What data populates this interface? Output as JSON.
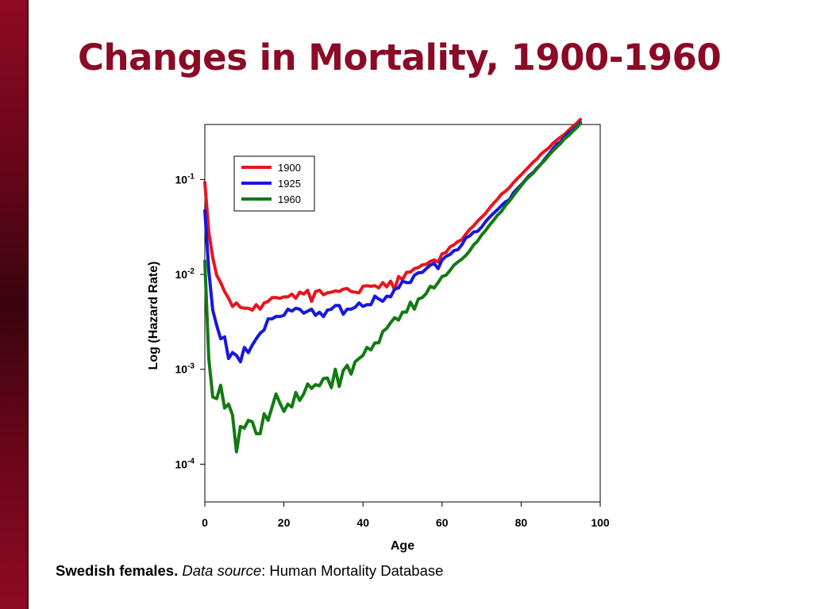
{
  "title": "Changes in Mortality, 1900-1960",
  "caption": {
    "bold": "Swedish females.",
    "italic": "Data source",
    "rest": ": Human Mortality Database"
  },
  "colors": {
    "side_bar": "#7a0820",
    "title": "#8b0a26"
  },
  "chart_data": {
    "type": "line",
    "xlabel": "Age",
    "ylabel": "Log (Hazard Rate)",
    "xlim": [
      0,
      100
    ],
    "ylim": [
      4e-05,
      0.38
    ],
    "y_scale": "log",
    "x_ticks": [
      0,
      20,
      40,
      60,
      80,
      100
    ],
    "y_ticks": [
      {
        "value": 0.1,
        "base": "10",
        "exp": "-1"
      },
      {
        "value": 0.01,
        "base": "10",
        "exp": "-2"
      },
      {
        "value": 0.001,
        "base": "10",
        "exp": "-3"
      },
      {
        "value": 0.0001,
        "base": "10",
        "exp": "-4"
      }
    ],
    "grid": false,
    "legend_position": "top-left",
    "series": [
      {
        "name": "1900",
        "color": "#e8141c",
        "x": [
          0,
          1,
          2,
          3,
          4,
          5,
          6,
          7,
          8,
          9,
          10,
          11,
          12,
          13,
          14,
          15,
          16,
          17,
          18,
          19,
          20,
          21,
          22,
          23,
          24,
          25,
          26,
          27,
          28,
          29,
          30,
          31,
          32,
          33,
          34,
          35,
          36,
          37,
          38,
          39,
          40,
          41,
          42,
          43,
          44,
          45,
          46,
          47,
          48,
          49,
          50,
          51,
          52,
          53,
          54,
          55,
          56,
          57,
          58,
          59,
          60,
          61,
          62,
          63,
          64,
          65,
          66,
          67,
          68,
          69,
          70,
          71,
          72,
          73,
          74,
          75,
          76,
          77,
          78,
          79,
          80,
          81,
          82,
          83,
          84,
          85,
          86,
          87,
          88,
          89,
          90,
          91,
          92,
          93,
          94,
          95
        ],
        "y": [
          0.093,
          0.028,
          0.015,
          0.0098,
          0.0082,
          0.0066,
          0.0056,
          0.0046,
          0.005,
          0.0045,
          0.0044,
          0.0044,
          0.0042,
          0.0048,
          0.0043,
          0.005,
          0.0052,
          0.0057,
          0.0057,
          0.0056,
          0.0058,
          0.0058,
          0.0062,
          0.0056,
          0.0065,
          0.0062,
          0.0068,
          0.0052,
          0.0066,
          0.0068,
          0.0061,
          0.0064,
          0.0065,
          0.0067,
          0.0066,
          0.007,
          0.0071,
          0.0066,
          0.0065,
          0.0064,
          0.0075,
          0.0076,
          0.0075,
          0.0076,
          0.0072,
          0.0082,
          0.0074,
          0.0085,
          0.0069,
          0.0095,
          0.0088,
          0.0105,
          0.0106,
          0.0115,
          0.0118,
          0.0126,
          0.0128,
          0.0137,
          0.0142,
          0.0135,
          0.0165,
          0.017,
          0.0195,
          0.0205,
          0.0222,
          0.0232,
          0.0265,
          0.0298,
          0.0325,
          0.0365,
          0.04,
          0.044,
          0.05,
          0.056,
          0.062,
          0.07,
          0.075,
          0.082,
          0.092,
          0.102,
          0.112,
          0.124,
          0.137,
          0.152,
          0.165,
          0.185,
          0.2,
          0.215,
          0.24,
          0.26,
          0.28,
          0.3,
          0.33,
          0.36,
          0.39,
          0.43
        ]
      },
      {
        "name": "1925",
        "color": "#1717dd",
        "x": [
          0,
          1,
          2,
          3,
          4,
          5,
          6,
          7,
          8,
          9,
          10,
          11,
          12,
          13,
          14,
          15,
          16,
          17,
          18,
          19,
          20,
          21,
          22,
          23,
          24,
          25,
          26,
          27,
          28,
          29,
          30,
          31,
          32,
          33,
          34,
          35,
          36,
          37,
          38,
          39,
          40,
          41,
          42,
          43,
          44,
          45,
          46,
          47,
          48,
          49,
          50,
          51,
          52,
          53,
          54,
          55,
          56,
          57,
          58,
          59,
          60,
          61,
          62,
          63,
          64,
          65,
          66,
          67,
          68,
          69,
          70,
          71,
          72,
          73,
          74,
          75,
          76,
          77,
          78,
          79,
          80,
          81,
          82,
          83,
          84,
          85,
          86,
          87,
          88,
          89,
          90,
          91,
          92,
          93,
          94,
          95
        ],
        "y": [
          0.047,
          0.011,
          0.0042,
          0.0029,
          0.0021,
          0.0022,
          0.0013,
          0.0015,
          0.0014,
          0.0012,
          0.0017,
          0.0015,
          0.0018,
          0.0021,
          0.0024,
          0.0026,
          0.0034,
          0.0034,
          0.0036,
          0.0036,
          0.0037,
          0.0043,
          0.0041,
          0.0044,
          0.0043,
          0.0039,
          0.0041,
          0.0043,
          0.0037,
          0.004,
          0.0036,
          0.0042,
          0.0043,
          0.0047,
          0.0047,
          0.0038,
          0.0043,
          0.0043,
          0.0045,
          0.005,
          0.0046,
          0.0048,
          0.0048,
          0.0059,
          0.0055,
          0.0052,
          0.0059,
          0.0058,
          0.007,
          0.0072,
          0.0085,
          0.0082,
          0.0082,
          0.0098,
          0.0104,
          0.0105,
          0.0115,
          0.0125,
          0.013,
          0.0115,
          0.0142,
          0.0155,
          0.0162,
          0.0178,
          0.0182,
          0.0205,
          0.0242,
          0.0255,
          0.028,
          0.0285,
          0.0315,
          0.036,
          0.04,
          0.044,
          0.048,
          0.053,
          0.058,
          0.061,
          0.072,
          0.08,
          0.088,
          0.098,
          0.11,
          0.118,
          0.132,
          0.145,
          0.165,
          0.185,
          0.21,
          0.235,
          0.25,
          0.28,
          0.31,
          0.33,
          0.36,
          0.4
        ]
      },
      {
        "name": "1960",
        "color": "#127a12",
        "x": [
          0,
          1,
          2,
          3,
          4,
          5,
          6,
          7,
          8,
          9,
          10,
          11,
          12,
          13,
          14,
          15,
          16,
          17,
          18,
          19,
          20,
          21,
          22,
          23,
          24,
          25,
          26,
          27,
          28,
          29,
          30,
          31,
          32,
          33,
          34,
          35,
          36,
          37,
          38,
          39,
          40,
          41,
          42,
          43,
          44,
          45,
          46,
          47,
          48,
          49,
          50,
          51,
          52,
          53,
          54,
          55,
          56,
          57,
          58,
          59,
          60,
          61,
          62,
          63,
          64,
          65,
          66,
          67,
          68,
          69,
          70,
          71,
          72,
          73,
          74,
          75,
          76,
          77,
          78,
          79,
          80,
          81,
          82,
          83,
          84,
          85,
          86,
          87,
          88,
          89,
          90,
          91,
          92,
          93,
          94,
          95
        ],
        "y": [
          0.0138,
          0.0013,
          0.00051,
          0.00049,
          0.00068,
          0.00039,
          0.00043,
          0.00033,
          0.000135,
          0.00025,
          0.00024,
          0.00029,
          0.00028,
          0.00021,
          0.00021,
          0.00034,
          0.00029,
          0.0004,
          0.00055,
          0.00044,
          0.00036,
          0.00043,
          0.0004,
          0.00057,
          0.00047,
          0.00055,
          0.0007,
          0.00063,
          0.00069,
          0.00067,
          0.0008,
          0.00081,
          0.00064,
          0.001,
          0.00066,
          0.00097,
          0.0011,
          0.00089,
          0.0012,
          0.0013,
          0.0014,
          0.0017,
          0.0016,
          0.0019,
          0.0019,
          0.0025,
          0.0027,
          0.0031,
          0.0035,
          0.0033,
          0.004,
          0.004,
          0.0051,
          0.0043,
          0.0055,
          0.0057,
          0.0063,
          0.0075,
          0.0072,
          0.0082,
          0.0095,
          0.0098,
          0.011,
          0.0125,
          0.0135,
          0.0145,
          0.0158,
          0.0178,
          0.0205,
          0.0225,
          0.026,
          0.029,
          0.033,
          0.037,
          0.042,
          0.046,
          0.053,
          0.059,
          0.067,
          0.076,
          0.086,
          0.097,
          0.107,
          0.116,
          0.13,
          0.145,
          0.16,
          0.18,
          0.2,
          0.22,
          0.24,
          0.27,
          0.29,
          0.32,
          0.35,
          0.39
        ]
      }
    ]
  }
}
